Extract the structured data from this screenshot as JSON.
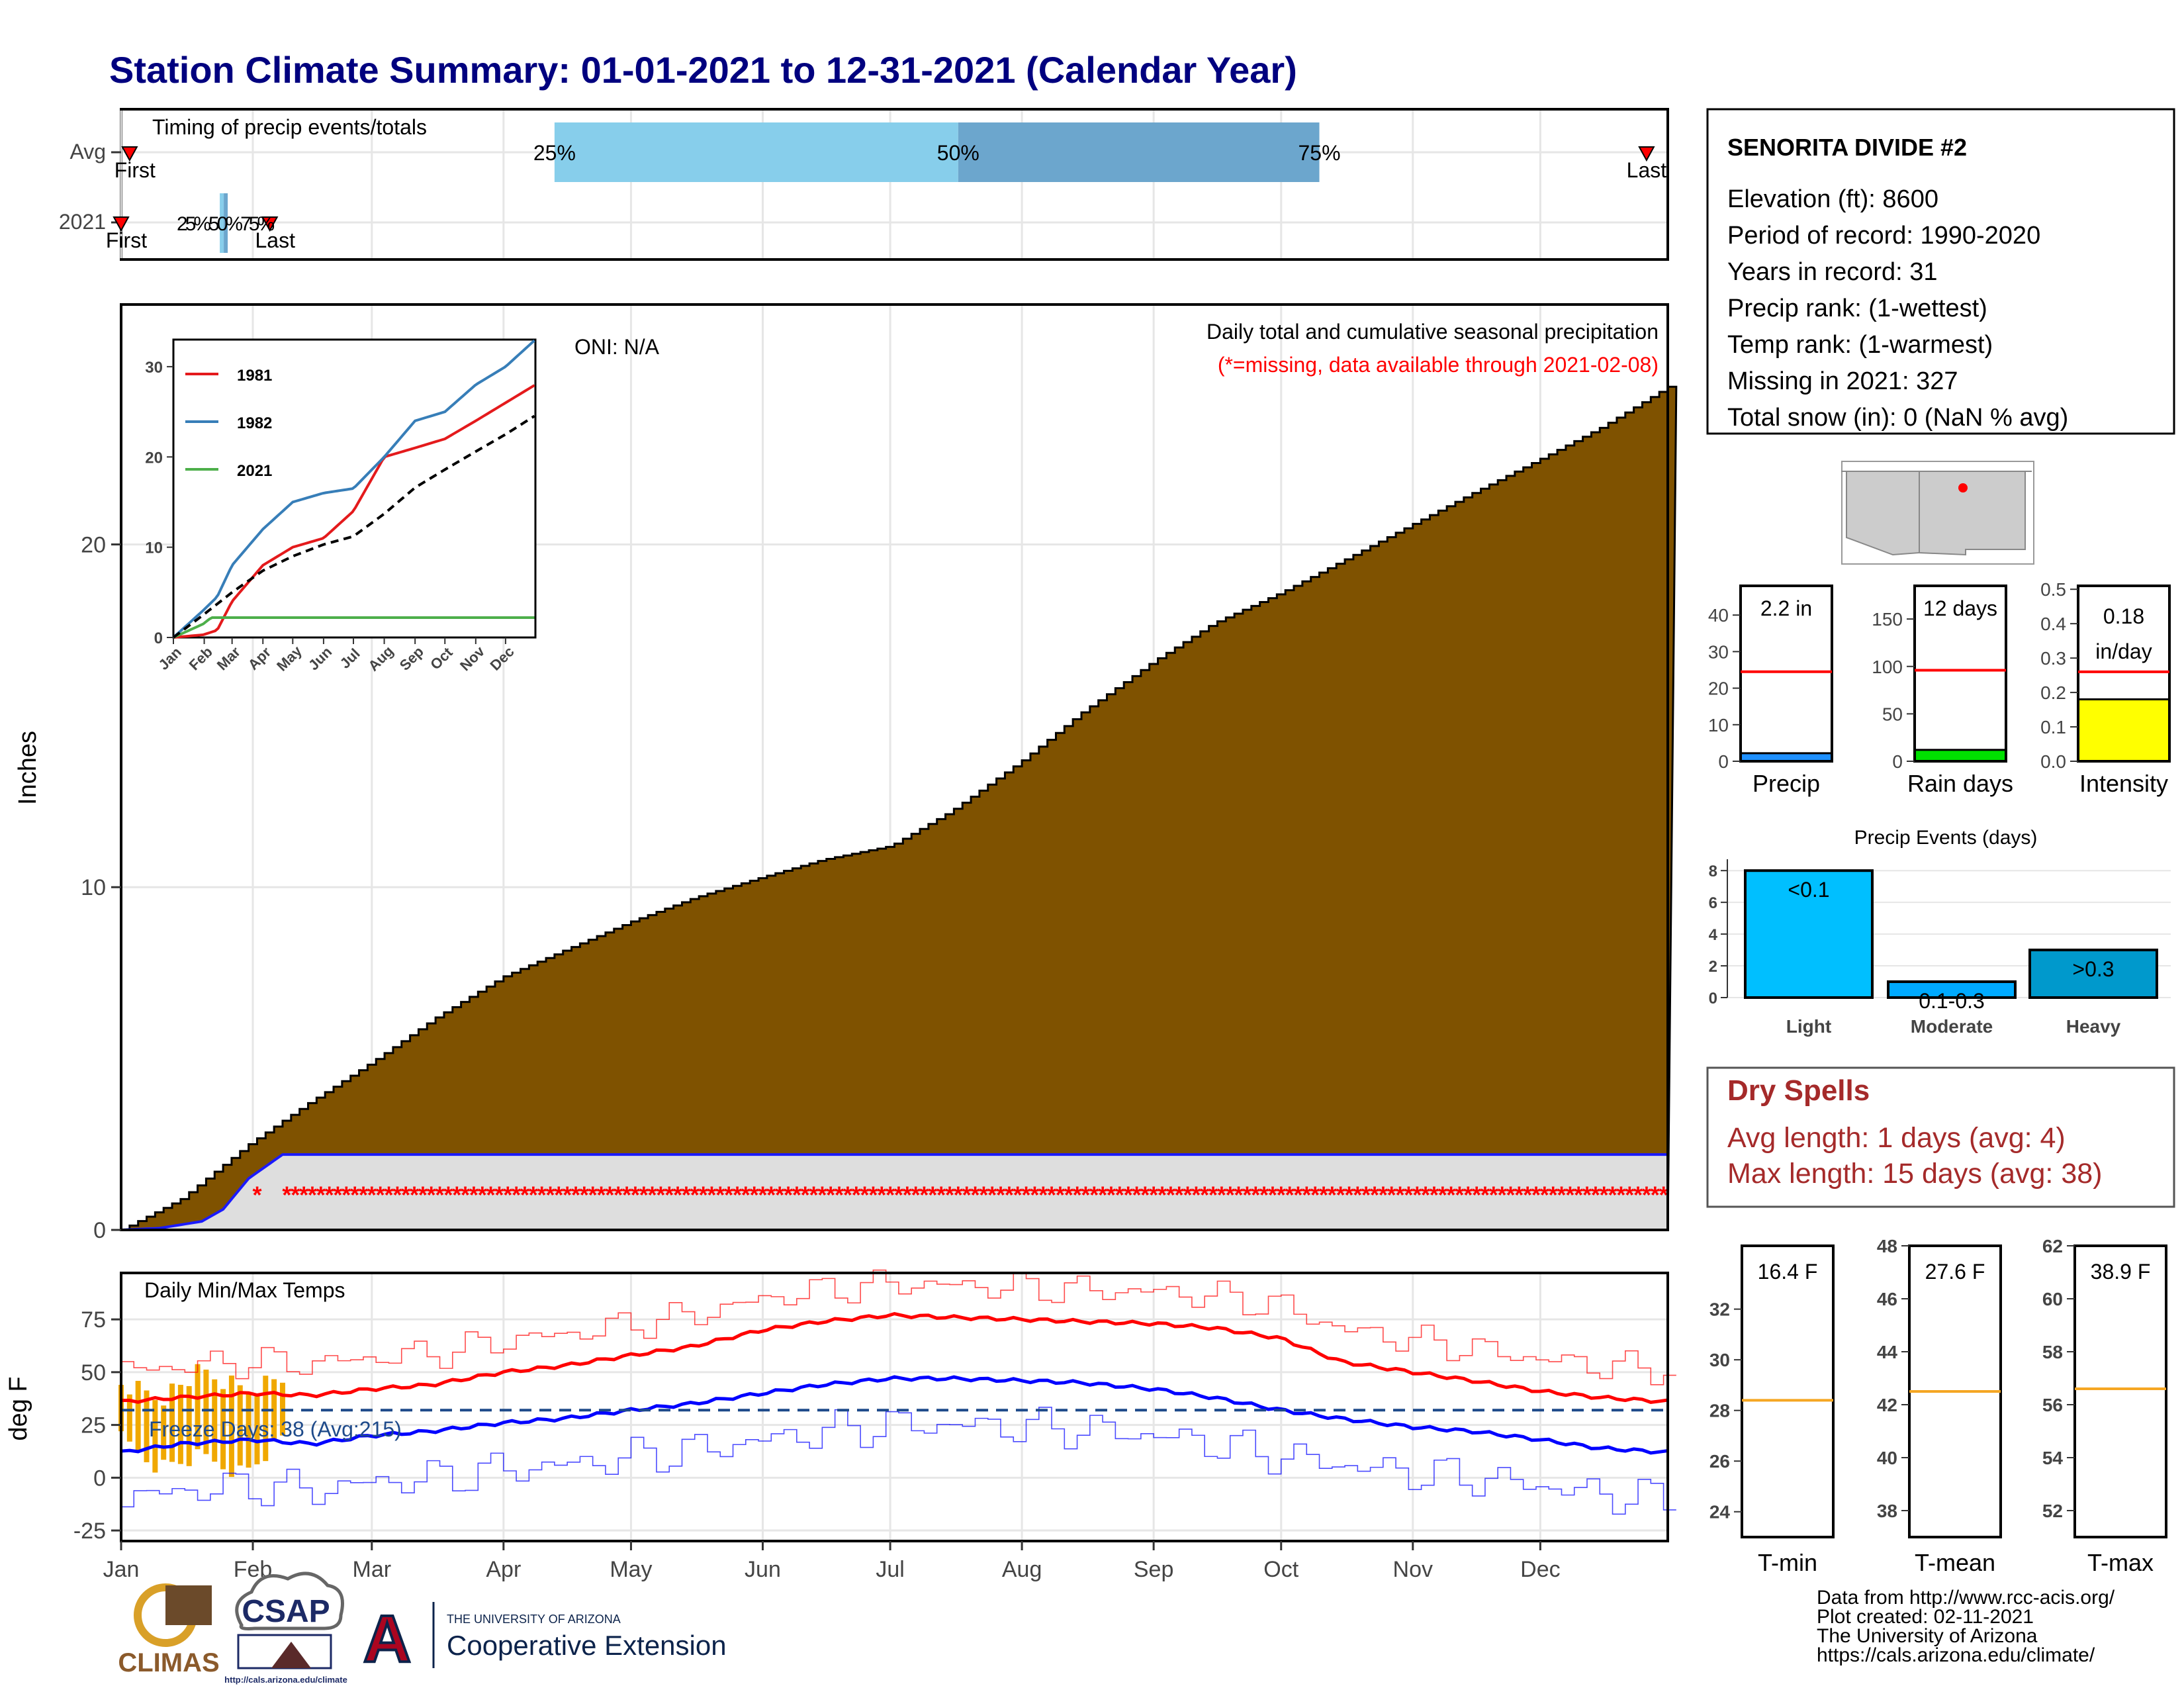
{
  "title": "Station Climate Summary: 01-01-2021 to 12-31-2021 (Calendar Year)",
  "colors": {
    "title": "#00007f",
    "precip_fill": "#7f5200",
    "avg_line": "#1a1aff",
    "missing": "#ff0000",
    "q1_bar": "#87ceeb",
    "q2_bar": "#6ca6cd",
    "tmax": "#ff0000",
    "tmin": "#0000ff",
    "freeze_bars": "#f0a800",
    "freeze_line": "#1e4a8a",
    "s1981": "#e41a1c",
    "s1982": "#377eb8",
    "s2021": "#4daf4a",
    "precip_bar": "#1e90ff",
    "raindays_bar": "#00e000",
    "intensity_bar": "#ffff00",
    "events_light": "#00bfff",
    "events_mod": "#00aaff",
    "events_heavy": "#0099cc",
    "dry_spells": "#a52a2a",
    "temp_mean_line": "#f5a623",
    "ref_line": "#ff0000"
  },
  "months": [
    "Jan",
    "Feb",
    "Mar",
    "Apr",
    "May",
    "Jun",
    "Jul",
    "Aug",
    "Sep",
    "Oct",
    "Nov",
    "Dec"
  ],
  "timing_panel": {
    "label": "Timing of precip events/totals",
    "rows": [
      "Avg",
      "2021"
    ],
    "avg_first": "First",
    "avg_last": "Last",
    "y2021_first": "First",
    "y2021_last": "Last",
    "q25": "25%",
    "q50": "50%",
    "q75": "75%",
    "y2021_quantiles": "25%50%75%",
    "avg_first_doy": 3,
    "avg_q25_doy": 103,
    "avg_q50_doy": 198,
    "avg_q75_doy": 283,
    "avg_last_doy": 360,
    "y2021_first_doy": 1,
    "y2021_quant_doy": 25,
    "y2021_last_doy": 36
  },
  "main_panel": {
    "y_axis_label": "Inches",
    "oni": "ONI: N/A",
    "header_line1": "Daily total and cumulative seasonal precipitation",
    "header_line2": "(*=missing, data available through 2021-02-08)",
    "yticks": [
      "0",
      "10",
      "20"
    ],
    "missing_marker": "*"
  },
  "inset": {
    "legend": [
      "1981",
      "1982",
      "2021"
    ],
    "yticks": [
      "0",
      "10",
      "20",
      "30"
    ],
    "months": [
      "Jan",
      "Feb",
      "Mar",
      "Apr",
      "May",
      "Jun",
      "Jul",
      "Aug",
      "Sep",
      "Oct",
      "Nov",
      "Dec"
    ]
  },
  "temp_panel": {
    "label": "Daily Min/Max Temps",
    "y_axis_label": "deg F",
    "freeze_text": "Freeze Days: 38 (Avg:215)",
    "yticks": [
      "-25",
      "0",
      "25",
      "50",
      "75"
    ],
    "freeze_threshold_f": 32
  },
  "station": {
    "name": "SENORITA DIVIDE #2",
    "lines": [
      "Elevation (ft): 8600",
      "Period of record: 1990-2020",
      "Years in record: 31",
      "Precip rank:  (1-wettest)",
      "Temp rank:  (1-warmest)",
      "Missing in 2021: 327",
      "Total snow (in): 0 (NaN % avg)"
    ]
  },
  "mini_bars": [
    {
      "label": "Precip",
      "value_text": "2.2 in",
      "yticks": [
        "0",
        "10",
        "20",
        "30",
        "40"
      ],
      "ymax": 48,
      "value": 2.2,
      "avg": 24.5
    },
    {
      "label": "Rain days",
      "value_text": "12 days",
      "yticks": [
        "0",
        "50",
        "100",
        "150"
      ],
      "ymax": 185,
      "value": 12,
      "avg": 96
    },
    {
      "label": "Intensity",
      "value_text_1": "0.18",
      "value_text_2": "in/day",
      "yticks": [
        "0.0",
        "0.1",
        "0.2",
        "0.3",
        "0.4",
        "0.5"
      ],
      "ymax": 0.51,
      "value": 0.18,
      "avg": 0.26
    }
  ],
  "precip_events": {
    "title": "Precip Events (days)",
    "categories": [
      "Light",
      "Moderate",
      "Heavy"
    ],
    "bar_labels": [
      "<0.1",
      "0.1-0.3",
      ">0.3"
    ],
    "values": [
      8,
      1,
      3
    ],
    "yticks": [
      "0",
      "2",
      "4",
      "6",
      "8"
    ]
  },
  "dry_spells": {
    "title": "Dry Spells",
    "line1": "Avg length: 1 days (avg: 4)",
    "line2": "Max length: 15 days (avg: 38)"
  },
  "temp_boxes": [
    {
      "label": "T-min",
      "value_text": "16.4 F",
      "yticks": [
        "24",
        "26",
        "28",
        "30",
        "32"
      ],
      "ymin": 23,
      "ymax": 34.5,
      "avg": 28.4
    },
    {
      "label": "T-mean",
      "value_text": "27.6 F",
      "yticks": [
        "38",
        "40",
        "42",
        "44",
        "46",
        "48"
      ],
      "ymin": 37,
      "ymax": 48,
      "avg": 42.5
    },
    {
      "label": "T-max",
      "value_text": "38.9 F",
      "yticks": [
        "52",
        "54",
        "56",
        "58",
        "60",
        "62"
      ],
      "ymin": 51,
      "ymax": 62,
      "avg": 56.6
    }
  ],
  "credits": {
    "line1": "Data from http://www.rcc-acis.org/",
    "line2": "Plot created: 02-11-2021",
    "line3": "The University of Arizona",
    "line4": "https://cals.arizona.edu/climate/"
  },
  "logos": {
    "climas": "CLIMAS",
    "csap": "CSAP",
    "csap_url": "http://cals.arizona.edu/climate",
    "ua_small": "THE UNIVERSITY OF ARIZONA",
    "ua_big": "Cooperative Extension"
  },
  "chart_data": [
    {
      "type": "area",
      "title": "Daily total and cumulative seasonal precipitation",
      "ylabel": "Inches",
      "x_unit": "day of year",
      "ylim": [
        0,
        27
      ],
      "series": [
        {
          "name": "Avg",
          "x": [
            1,
            15,
            31,
            45,
            60,
            75,
            91,
            106,
            121,
            136,
            152,
            166,
            182,
            196,
            213,
            227,
            244,
            258,
            274,
            288,
            305,
            319,
            335,
            349,
            365
          ],
          "values": [
            0,
            0.9,
            2.5,
            3.7,
            4.9,
            6.2,
            7.4,
            8.2,
            9.0,
            9.7,
            10.3,
            10.8,
            11.2,
            12.2,
            13.7,
            15.1,
            16.6,
            17.7,
            18.6,
            19.5,
            20.6,
            21.5,
            22.5,
            23.4,
            24.6
          ]
        },
        {
          "name": "2021",
          "x": [
            1,
            10,
            20,
            25,
            31,
            39,
            365
          ],
          "values": [
            0,
            0.05,
            0.25,
            0.6,
            1.5,
            2.2,
            2.2
          ]
        }
      ],
      "missing_from_doy": 39
    },
    {
      "type": "line",
      "title": "Daily Min/Max Temps",
      "ylabel": "deg F",
      "ylim": [
        -30,
        97
      ],
      "x": [
        1,
        15,
        32,
        46,
        60,
        74,
        91,
        105,
        121,
        135,
        152,
        166,
        182,
        196,
        213,
        227,
        244,
        258,
        274,
        288,
        305,
        319,
        335,
        349,
        365
      ],
      "series": [
        {
          "name": "Avg max",
          "values": [
            36,
            38,
            40,
            39,
            42,
            44,
            50,
            53,
            58,
            62,
            70,
            74,
            77,
            76,
            75,
            74,
            73,
            71,
            66,
            55,
            50,
            46,
            41,
            38,
            36
          ]
        },
        {
          "name": "Avg min",
          "values": [
            12,
            16,
            18,
            16,
            20,
            22,
            26,
            28,
            32,
            35,
            40,
            44,
            47,
            47,
            46,
            45,
            42,
            38,
            32,
            28,
            24,
            22,
            18,
            14,
            12
          ]
        },
        {
          "name": "2021 daily max",
          "x": [
            1,
            10,
            20,
            30,
            39
          ],
          "values": [
            45,
            38,
            50,
            42,
            48
          ]
        },
        {
          "name": "2021 daily min",
          "x": [
            1,
            10,
            20,
            30,
            39
          ],
          "values": [
            18,
            5,
            10,
            2,
            18
          ]
        }
      ]
    },
    {
      "type": "line",
      "title": "",
      "x_unit": "month",
      "ylim": [
        0,
        33
      ],
      "series": [
        {
          "name": "1981",
          "x": [
            1,
            31,
            45,
            60,
            91,
            121,
            152,
            182,
            213,
            244,
            274,
            305,
            335,
            365
          ],
          "values": [
            0,
            0.3,
            0.8,
            4,
            8,
            10,
            11,
            14,
            20,
            21,
            22,
            24,
            26,
            28
          ]
        },
        {
          "name": "1982",
          "x": [
            1,
            31,
            45,
            60,
            91,
            121,
            152,
            182,
            213,
            244,
            274,
            305,
            335,
            365
          ],
          "values": [
            0,
            3,
            4.5,
            8,
            12,
            15,
            16,
            16.5,
            20,
            24,
            25,
            28,
            30,
            33
          ]
        },
        {
          "name": "2021",
          "x": [
            1,
            31,
            39,
            365
          ],
          "values": [
            0,
            1.5,
            2.2,
            2.2
          ]
        },
        {
          "name": "Avg",
          "x": [
            1,
            31,
            60,
            91,
            121,
            152,
            182,
            213,
            244,
            274,
            305,
            335,
            365
          ],
          "values": [
            0,
            2.5,
            5,
            7.4,
            9,
            10.3,
            11.2,
            13.7,
            16.6,
            18.6,
            20.6,
            22.5,
            24.6
          ]
        }
      ]
    }
  ]
}
